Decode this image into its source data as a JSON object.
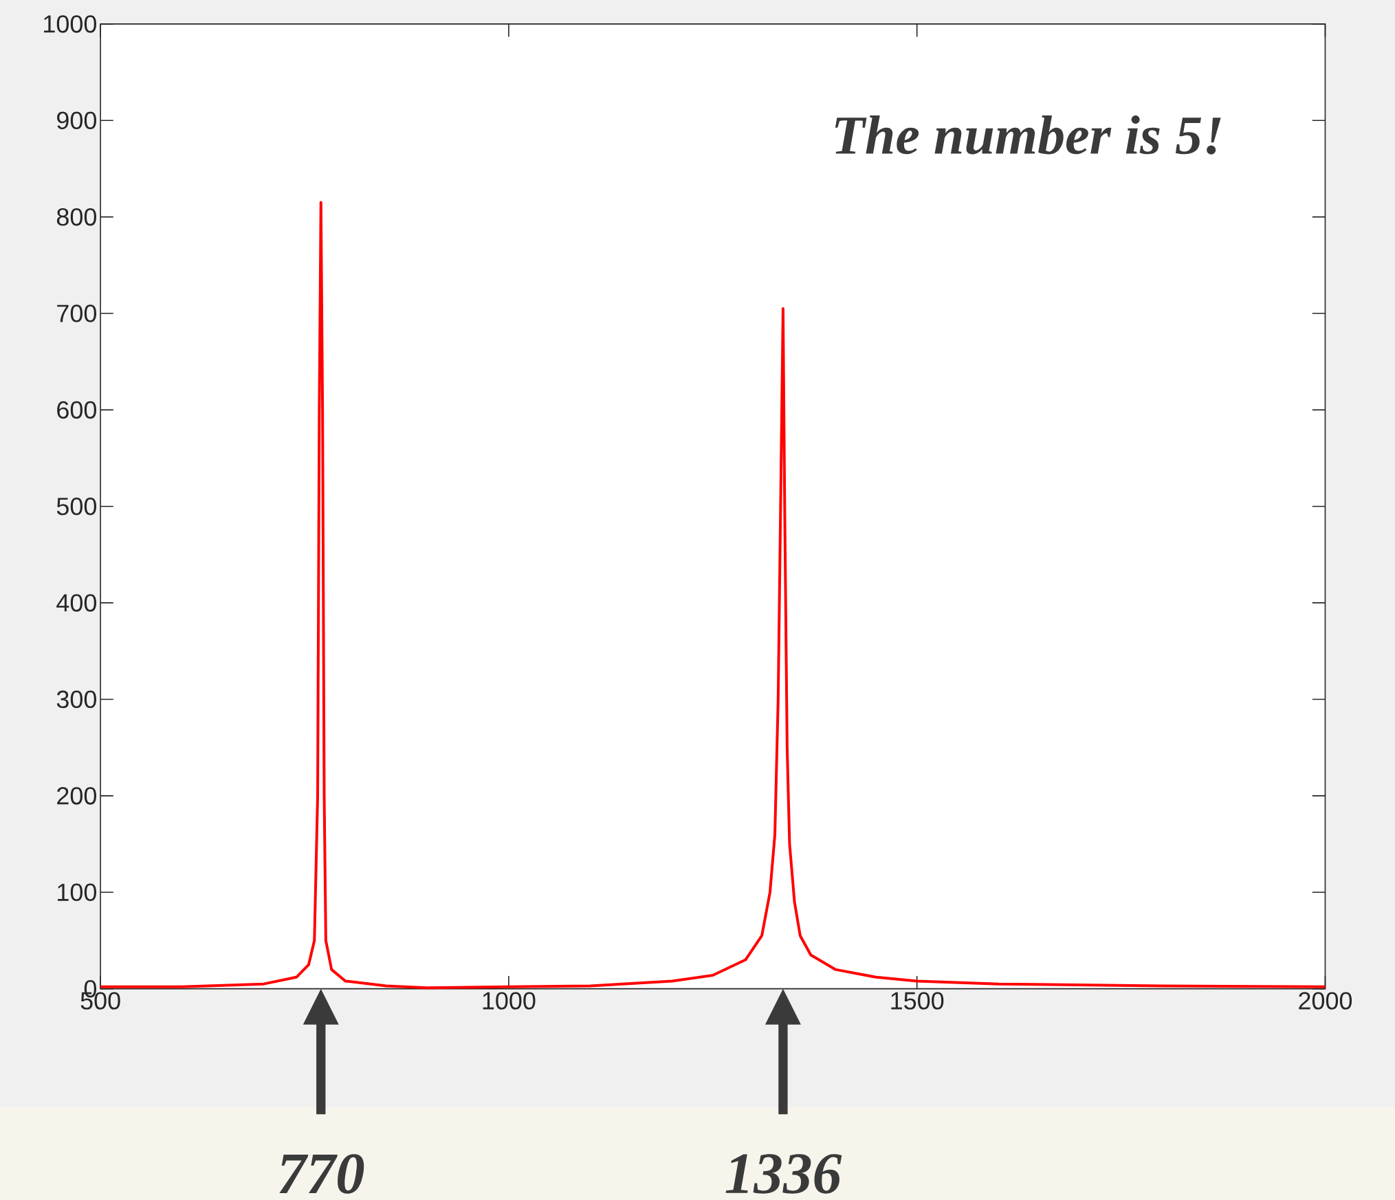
{
  "chart_data": {
    "type": "line",
    "x": [
      500,
      600,
      700,
      740,
      755,
      762,
      766,
      768,
      770,
      772,
      774,
      776,
      783,
      800,
      850,
      900,
      1000,
      1100,
      1200,
      1250,
      1290,
      1310,
      1320,
      1326,
      1330,
      1333,
      1336,
      1338,
      1341,
      1344,
      1350,
      1357,
      1370,
      1400,
      1450,
      1500,
      1600,
      1800,
      2000
    ],
    "series": [
      {
        "color": "#ff0000",
        "values": [
          2,
          2,
          5,
          12,
          25,
          50,
          200,
          600,
          815,
          600,
          200,
          50,
          20,
          8,
          3,
          1,
          2,
          3,
          8,
          14,
          30,
          55,
          100,
          160,
          300,
          500,
          705,
          500,
          250,
          150,
          90,
          55,
          35,
          20,
          12,
          8,
          5,
          3,
          2
        ]
      }
    ],
    "xlim": [
      500,
      2000
    ],
    "xticks": [
      500,
      1000,
      1500,
      2000
    ],
    "ylim": [
      0,
      1000
    ],
    "yticks": [
      0,
      100,
      200,
      300,
      400,
      500,
      600,
      700,
      800,
      900,
      1000
    ],
    "annotations": [
      "The number is 5!",
      "770",
      "1336"
    ]
  }
}
